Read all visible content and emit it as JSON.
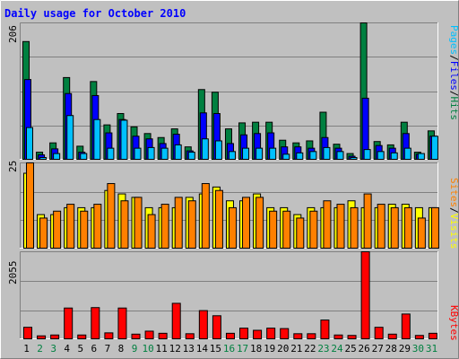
{
  "chart_data": {
    "type": "bar",
    "title": "Daily usage for October 2010",
    "colors": {
      "hits": "#008040",
      "files": "#0000ff",
      "pages": "#00c0ff",
      "visits": "#ffff00",
      "sites": "#ff8000",
      "kbytes": "#ff0000",
      "weekend_label": "#008040",
      "weekday_label": "#000000",
      "title": "#0000ff",
      "panel_bg": "#c0c0c0"
    },
    "categories": [
      "1",
      "2",
      "3",
      "4",
      "5",
      "6",
      "7",
      "8",
      "9",
      "10",
      "11",
      "12",
      "13",
      "14",
      "15",
      "16",
      "17",
      "18",
      "19",
      "20",
      "21",
      "22",
      "23",
      "24",
      "25",
      "26",
      "27",
      "28",
      "29",
      "30",
      "31"
    ],
    "weekend_days": [
      "2",
      "3",
      "9",
      "10",
      "16",
      "17",
      "23",
      "24",
      "30",
      "31"
    ],
    "top_panel": {
      "max_label": "206",
      "ylim": [
        0,
        206
      ],
      "legend": [
        "Pages",
        "/",
        "Files",
        "/",
        "Hits"
      ],
      "series": [
        {
          "name": "Hits",
          "values": [
            178,
            12,
            26,
            124,
            21,
            118,
            53,
            70,
            50,
            40,
            34,
            47,
            20,
            106,
            102,
            47,
            56,
            57,
            57,
            30,
            26,
            29,
            72,
            24,
            10,
            206,
            28,
            23,
            57,
            12,
            44
          ]
        },
        {
          "name": "Files",
          "values": [
            121,
            8,
            17,
            100,
            12,
            97,
            41,
            61,
            36,
            32,
            25,
            39,
            14,
            71,
            70,
            25,
            38,
            40,
            41,
            20,
            20,
            18,
            34,
            18,
            6,
            93,
            22,
            18,
            40,
            9,
            36
          ]
        },
        {
          "name": "Pages",
          "values": [
            49,
            4,
            10,
            67,
            10,
            61,
            18,
            60,
            18,
            19,
            18,
            23,
            12,
            32,
            29,
            13,
            18,
            18,
            18,
            9,
            11,
            13,
            19,
            13,
            4,
            16,
            13,
            11,
            18,
            10,
            36
          ]
        }
      ]
    },
    "mid_panel": {
      "max_label": "25",
      "ylim": [
        0,
        25
      ],
      "legend": [
        "Sites",
        "/",
        "Visits"
      ],
      "series": [
        {
          "name": "Visits",
          "values": [
            22,
            10,
            10,
            12,
            12,
            12,
            17,
            16,
            15,
            12,
            12,
            12,
            15,
            16,
            18,
            14,
            14,
            16,
            12,
            12,
            10,
            12,
            12,
            12,
            14,
            12,
            12,
            13,
            13,
            12,
            12
          ]
        },
        {
          "name": "Sites",
          "values": [
            25,
            9,
            11,
            13,
            11,
            13,
            19,
            14,
            15,
            10,
            13,
            15,
            14,
            19,
            17,
            12,
            15,
            15,
            11,
            11,
            9,
            11,
            14,
            13,
            12,
            16,
            13,
            12,
            12,
            9,
            12
          ]
        }
      ]
    },
    "bottom_panel": {
      "max_label": "2055",
      "ylim": [
        0,
        2055
      ],
      "legend": [
        "KBytes"
      ],
      "series": [
        {
          "name": "KBytes",
          "values": [
            290,
            90,
            110,
            740,
            110,
            750,
            160,
            740,
            130,
            200,
            150,
            850,
            140,
            680,
            560,
            150,
            270,
            220,
            270,
            260,
            140,
            140,
            460,
            110,
            100,
            2055,
            290,
            130,
            600,
            100,
            150
          ]
        }
      ]
    }
  }
}
